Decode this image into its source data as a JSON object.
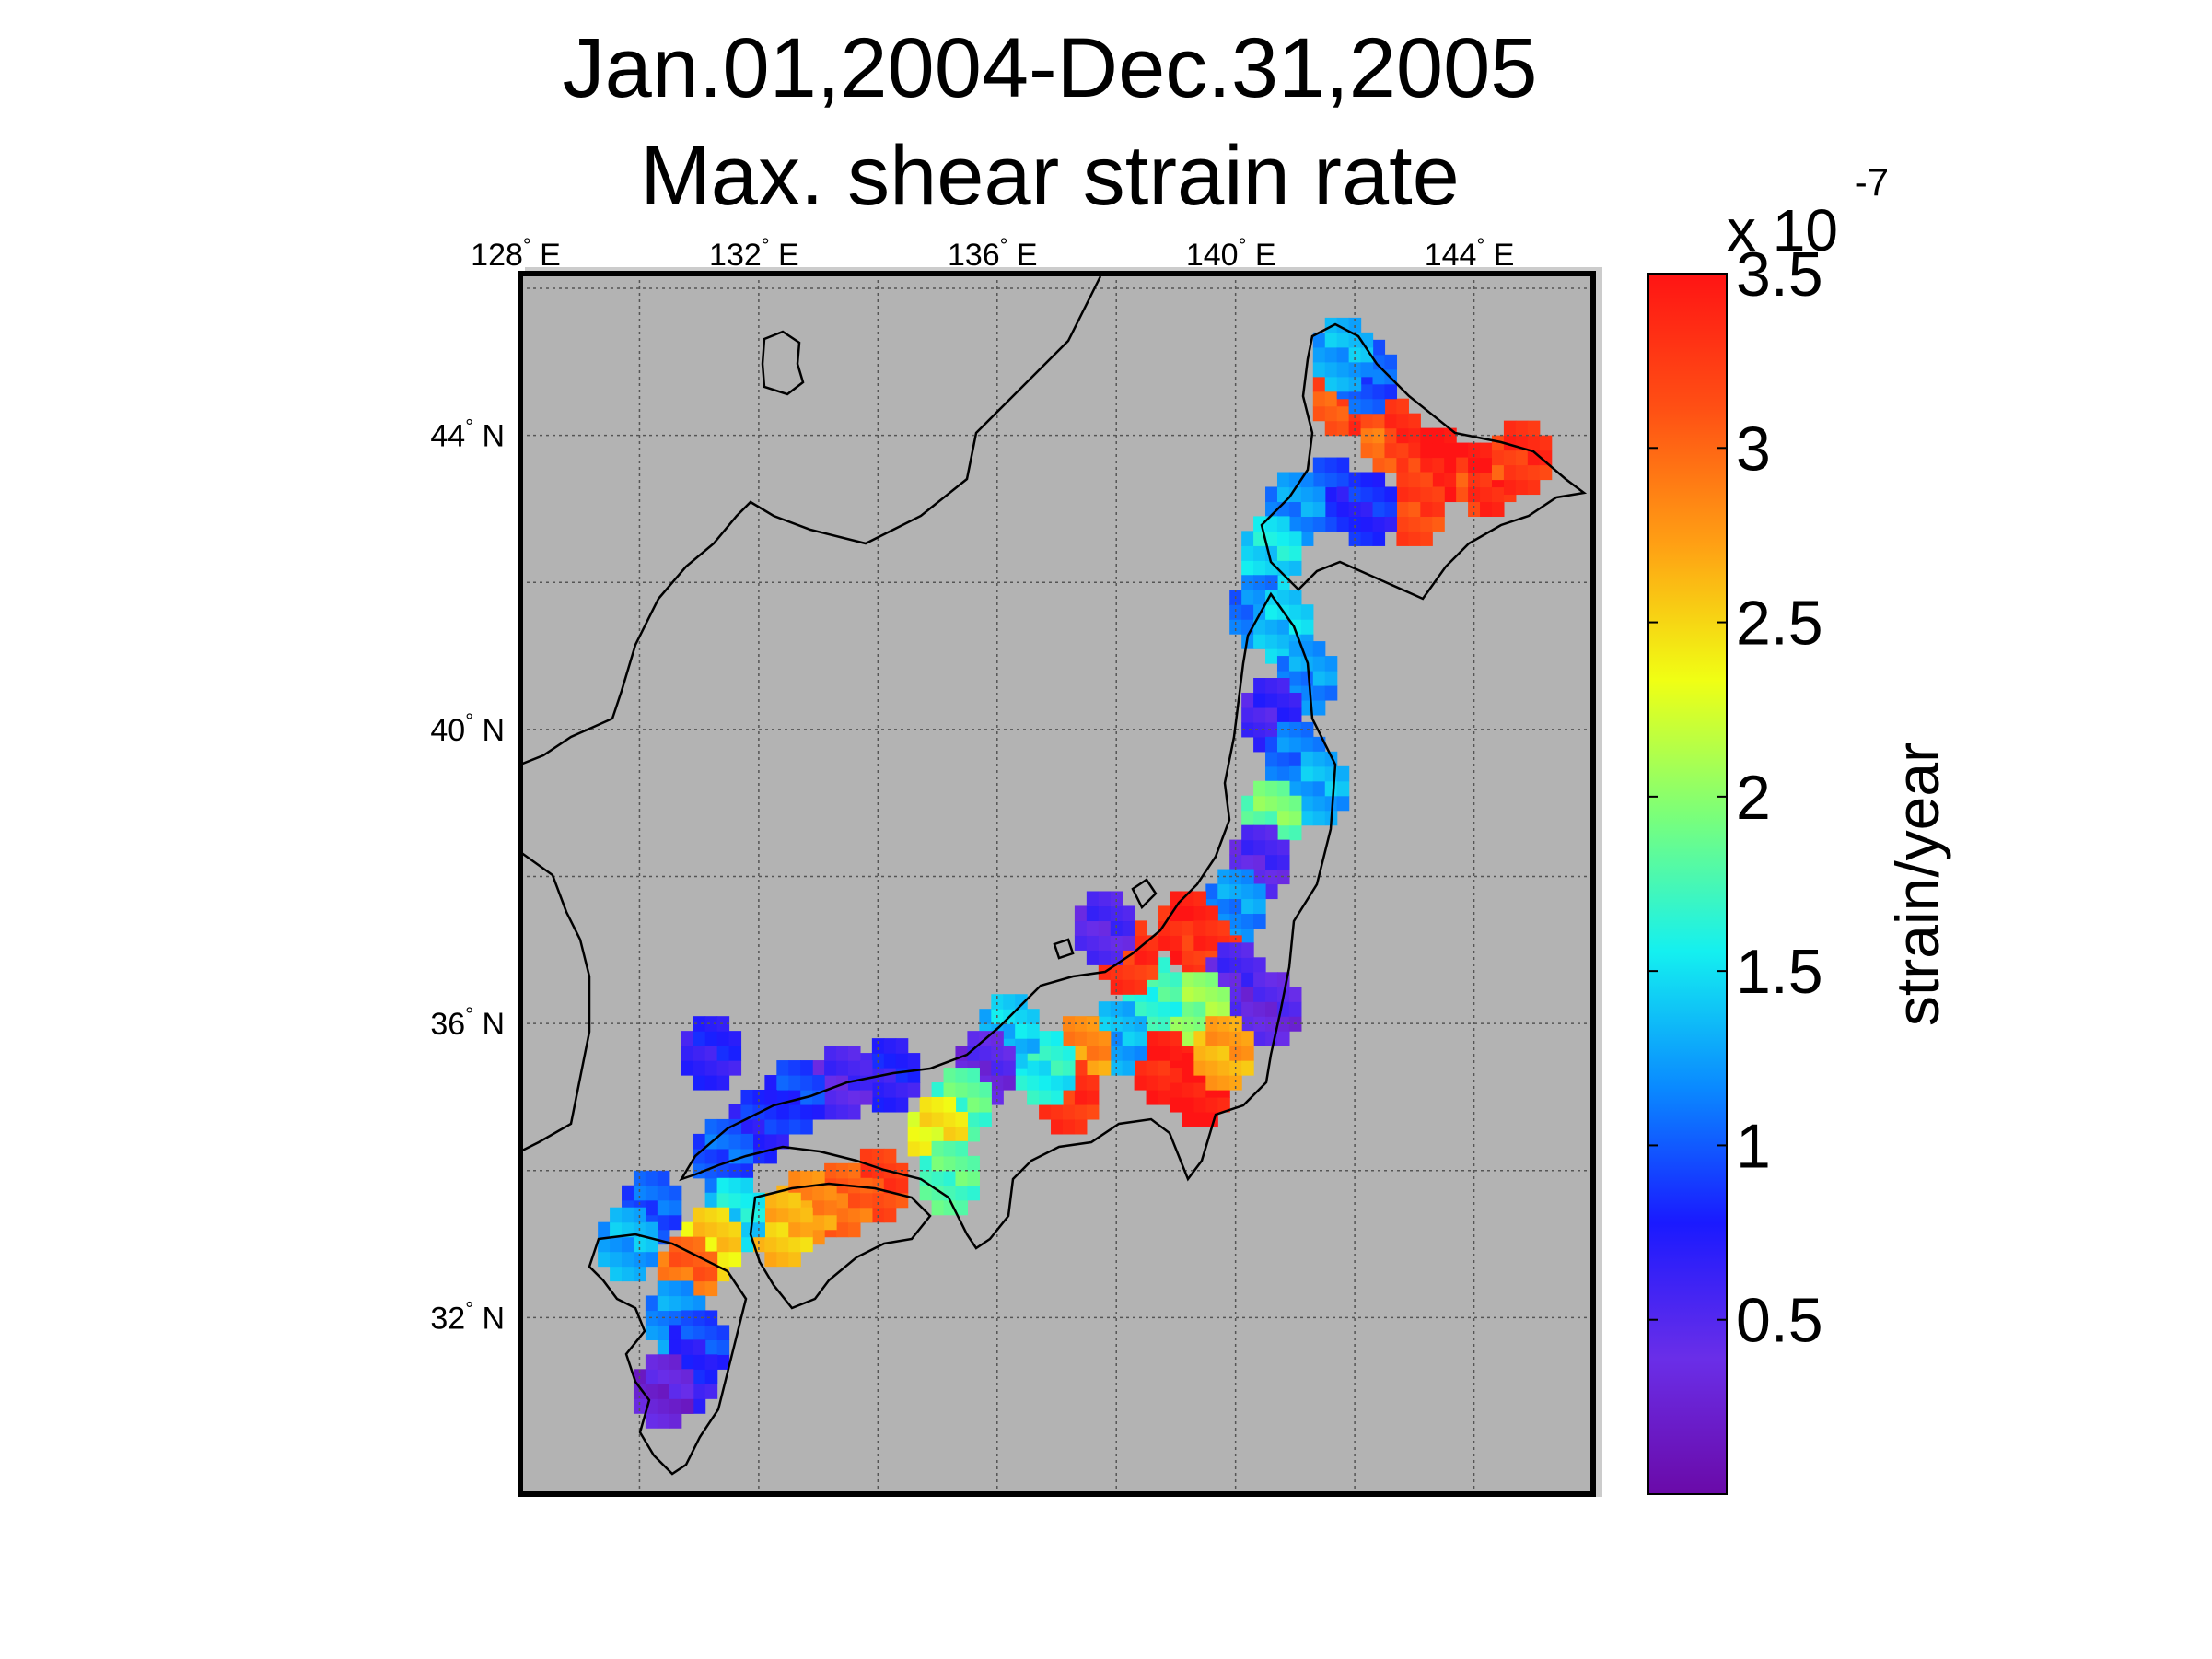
{
  "title": {
    "line1": "Jan.01,2004-Dec.31,2005",
    "line2": "Max. shear strain rate"
  },
  "map": {
    "background_color": "#b3b3b3",
    "lon_range": [
      128,
      146
    ],
    "lat_range": [
      29.6,
      46.2
    ],
    "lon_ticks": [
      {
        "value": 128,
        "label": "128",
        "unit": "E"
      },
      {
        "value": 132,
        "label": "132",
        "unit": "E"
      },
      {
        "value": 136,
        "label": "136",
        "unit": "E"
      },
      {
        "value": 140,
        "label": "140",
        "unit": "E"
      },
      {
        "value": 144,
        "label": "144",
        "unit": "E"
      }
    ],
    "lat_ticks": [
      {
        "value": 44,
        "label": "44",
        "unit": "N"
      },
      {
        "value": 40,
        "label": "40",
        "unit": "N"
      },
      {
        "value": 36,
        "label": "36",
        "unit": "N"
      },
      {
        "value": 32,
        "label": "32",
        "unit": "N"
      }
    ],
    "cell_size_deg": 0.2,
    "strain_cells": [
      [
        141.8,
        44.5,
        3.4
      ],
      [
        142.6,
        44.0,
        3.3
      ],
      [
        143.4,
        43.6,
        3.5
      ],
      [
        144.2,
        43.4,
        3.4
      ],
      [
        144.8,
        43.7,
        3.3
      ],
      [
        143.0,
        43.0,
        3.2
      ],
      [
        142.2,
        44.8,
        1.0
      ],
      [
        141.8,
        45.1,
        1.3
      ],
      [
        141.6,
        43.2,
        0.9
      ],
      [
        141.0,
        43.0,
        1.2
      ],
      [
        140.6,
        42.4,
        1.5
      ],
      [
        140.4,
        41.6,
        1.1
      ],
      [
        140.8,
        41.4,
        1.4
      ],
      [
        141.2,
        40.7,
        1.2
      ],
      [
        140.6,
        40.2,
        0.6
      ],
      [
        141.0,
        39.6,
        1.1
      ],
      [
        141.4,
        39.2,
        1.3
      ],
      [
        140.6,
        38.8,
        1.9
      ],
      [
        140.4,
        38.2,
        0.5
      ],
      [
        140.0,
        37.6,
        1.2
      ],
      [
        139.2,
        37.3,
        3.4
      ],
      [
        139.6,
        36.9,
        3.3
      ],
      [
        140.0,
        36.6,
        0.5
      ],
      [
        140.6,
        36.2,
        0.4
      ],
      [
        139.4,
        36.2,
        2.0
      ],
      [
        138.6,
        36.4,
        1.7
      ],
      [
        138.2,
        36.9,
        3.3
      ],
      [
        137.8,
        37.3,
        0.5
      ],
      [
        138.8,
        35.4,
        3.4
      ],
      [
        139.4,
        35.1,
        3.5
      ],
      [
        139.8,
        35.6,
        2.7
      ],
      [
        138.0,
        35.8,
        1.3
      ],
      [
        137.4,
        35.6,
        2.8
      ],
      [
        137.2,
        35.0,
        3.3
      ],
      [
        136.8,
        35.4,
        1.6
      ],
      [
        136.2,
        35.9,
        1.4
      ],
      [
        135.8,
        35.4,
        0.4
      ],
      [
        135.4,
        34.9,
        1.8
      ],
      [
        135.0,
        34.5,
        2.4
      ],
      [
        135.2,
        33.9,
        1.8
      ],
      [
        134.2,
        35.3,
        0.7
      ],
      [
        133.4,
        35.2,
        0.5
      ],
      [
        132.6,
        35.0,
        0.9
      ],
      [
        132.0,
        34.6,
        0.8
      ],
      [
        131.4,
        34.2,
        1.0
      ],
      [
        134.0,
        33.8,
        3.2
      ],
      [
        133.4,
        33.6,
        3.0
      ],
      [
        132.8,
        33.5,
        2.8
      ],
      [
        132.4,
        33.2,
        2.6
      ],
      [
        131.6,
        33.4,
        1.5
      ],
      [
        131.2,
        33.0,
        2.5
      ],
      [
        130.8,
        32.6,
        3.0
      ],
      [
        130.6,
        32.0,
        1.2
      ],
      [
        131.0,
        31.6,
        0.9
      ],
      [
        130.8,
        31.2,
        0.7
      ],
      [
        130.4,
        31.0,
        0.3
      ],
      [
        130.2,
        33.5,
        1.0
      ],
      [
        129.8,
        33.0,
        1.3
      ],
      [
        131.2,
        35.6,
        0.7
      ],
      [
        142.2,
        43.0,
        0.8
      ]
    ]
  },
  "colorbar": {
    "multiplier_base": "x 10",
    "multiplier_exp": "-7",
    "label": "strain/year",
    "min": 0,
    "max": 3.5,
    "ticks": [
      {
        "value": 0.5,
        "label": "0.5"
      },
      {
        "value": 1.0,
        "label": "1"
      },
      {
        "value": 1.5,
        "label": "1.5"
      },
      {
        "value": 2.0,
        "label": "2"
      },
      {
        "value": 2.5,
        "label": "2.5"
      },
      {
        "value": 3.0,
        "label": "3"
      },
      {
        "value": 3.5,
        "label": "3.5"
      }
    ],
    "colors": [
      "#6a0aa8",
      "#6a2ee8",
      "#1a1aff",
      "#0a8aff",
      "#14f0f0",
      "#7aff7a",
      "#f0ff14",
      "#ffa014",
      "#ff5014",
      "#ff1414"
    ]
  }
}
